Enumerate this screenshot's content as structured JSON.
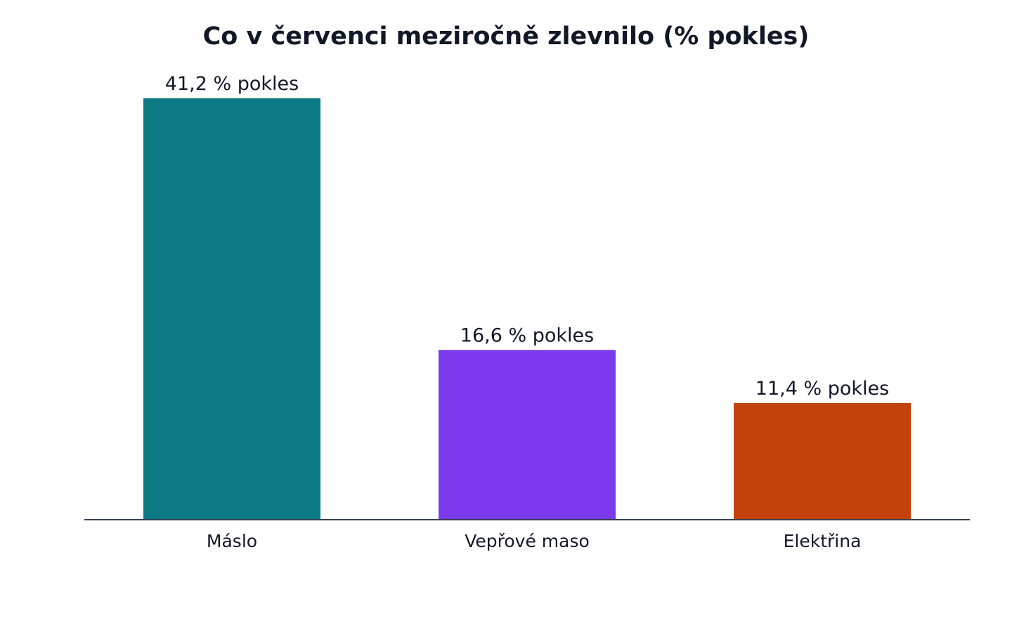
{
  "chart_data": {
    "type": "bar",
    "title": "Co v červenci meziročně zlevnilo (% pokles)",
    "categories": [
      "Máslo",
      "Vepřové maso",
      "Elektřina"
    ],
    "values": [
      41.2,
      16.6,
      11.4
    ],
    "value_labels": [
      "41,2 % pokles",
      "16,6 % pokles",
      "11,4 % pokles"
    ],
    "colors": [
      "#0b7b85",
      "#7c3aed",
      "#c2410c"
    ],
    "xlabel": "",
    "ylabel": "",
    "ylim": [
      0,
      41.2
    ],
    "grid": false,
    "legend": "none"
  }
}
